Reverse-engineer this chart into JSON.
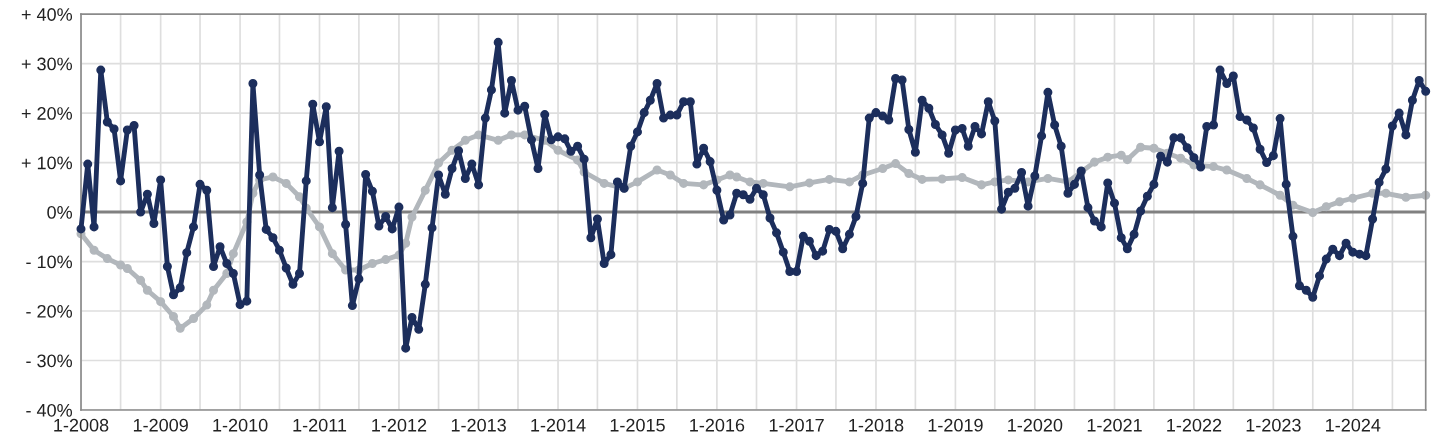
{
  "chart_data": {
    "type": "line",
    "series": [
      {
        "color": "#b2b7bc",
        "x": [
          "2008-01",
          "2008-03",
          "2008-05",
          "2008-07",
          "2008-08",
          "2008-10",
          "2008-11",
          "2009-01",
          "2009-03",
          "2009-04",
          "2009-06",
          "2009-08",
          "2009-09",
          "2009-11",
          "2009-12",
          "2010-02",
          "2010-03",
          "2010-04",
          "2010-06",
          "2010-08",
          "2010-10",
          "2010-11",
          "2011-01",
          "2011-03",
          "2011-05",
          "2011-07",
          "2011-09",
          "2011-11",
          "2012-01",
          "2012-02",
          "2012-03",
          "2012-05",
          "2012-07",
          "2012-09",
          "2012-11",
          "2013-01",
          "2013-04",
          "2013-06",
          "2013-08",
          "2013-11",
          "2014-01",
          "2014-04",
          "2014-05",
          "2014-08",
          "2014-11",
          "2015-01",
          "2015-04",
          "2015-06",
          "2015-08",
          "2015-11",
          "2016-01",
          "2016-03",
          "2016-04",
          "2016-06",
          "2016-08",
          "2016-12",
          "2017-03",
          "2017-06",
          "2017-09",
          "2017-11",
          "2018-02",
          "2018-04",
          "2018-06",
          "2018-08",
          "2018-11",
          "2019-02",
          "2019-05",
          "2019-07",
          "2019-09",
          "2019-12",
          "2020-03",
          "2020-06",
          "2020-08",
          "2020-10",
          "2020-12",
          "2021-02",
          "2021-03",
          "2021-05",
          "2021-07",
          "2021-09",
          "2021-11",
          "2022-01",
          "2022-04",
          "2022-06",
          "2022-09",
          "2022-11",
          "2023-02",
          "2023-04",
          "2023-07",
          "2023-09",
          "2023-11",
          "2024-01",
          "2024-04",
          "2024-06",
          "2024-09",
          "2024-12"
        ],
        "values": [
          -4.4,
          -7.7,
          -9.4,
          -10.7,
          -11.4,
          -13.8,
          -15.8,
          -18.1,
          -21.1,
          -23.5,
          -21.5,
          -18.8,
          -15.8,
          -12.4,
          -8.4,
          -2.0,
          3.8,
          6.5,
          7.1,
          5.8,
          3.1,
          0.8,
          -3.0,
          -8.4,
          -11.7,
          -11.7,
          -10.4,
          -9.6,
          -8.7,
          -6.3,
          -1.0,
          4.4,
          9.9,
          12.5,
          14.5,
          15.6,
          14.5,
          15.6,
          15.6,
          14.5,
          12.5,
          10.5,
          8.1,
          5.8,
          4.8,
          6.1,
          8.5,
          7.5,
          5.8,
          5.5,
          6.5,
          7.5,
          7.1,
          6.1,
          5.8,
          5.1,
          5.9,
          6.6,
          6.1,
          7.5,
          8.8,
          9.8,
          7.8,
          6.6,
          6.7,
          7.0,
          5.5,
          6.1,
          6.5,
          6.1,
          6.8,
          6.1,
          8.1,
          10.1,
          11.1,
          11.5,
          10.6,
          13.1,
          12.9,
          11.9,
          10.9,
          9.5,
          9.2,
          8.5,
          6.8,
          5.5,
          3.4,
          1.4,
          -0.1,
          1.1,
          2.1,
          2.8,
          3.8,
          3.8,
          3.0,
          3.4
        ]
      },
      {
        "color": "#1c2e5c",
        "x": [
          "2008-01",
          "2008-02",
          "2008-03",
          "2008-04",
          "2008-05",
          "2008-06",
          "2008-07",
          "2008-08",
          "2008-09",
          "2008-10",
          "2008-11",
          "2008-12",
          "2009-01",
          "2009-02",
          "2009-03",
          "2009-04",
          "2009-05",
          "2009-06",
          "2009-07",
          "2009-08",
          "2009-09",
          "2009-10",
          "2009-11",
          "2009-12",
          "2010-01",
          "2010-02",
          "2010-03",
          "2010-04",
          "2010-05",
          "2010-06",
          "2010-07",
          "2010-08",
          "2010-09",
          "2010-10",
          "2010-11",
          "2010-12",
          "2011-01",
          "2011-02",
          "2011-03",
          "2011-04",
          "2011-05",
          "2011-06",
          "2011-07",
          "2011-08",
          "2011-09",
          "2011-10",
          "2011-11",
          "2011-12",
          "2012-01",
          "2012-02",
          "2012-03",
          "2012-04",
          "2012-05",
          "2012-06",
          "2012-07",
          "2012-08",
          "2012-09",
          "2012-10",
          "2012-11",
          "2012-12",
          "2013-01",
          "2013-02",
          "2013-03",
          "2013-04",
          "2013-05",
          "2013-06",
          "2013-07",
          "2013-08",
          "2013-09",
          "2013-10",
          "2013-11",
          "2013-12",
          "2014-01",
          "2014-02",
          "2014-03",
          "2014-04",
          "2014-05",
          "2014-06",
          "2014-07",
          "2014-08",
          "2014-09",
          "2014-10",
          "2014-11",
          "2014-12",
          "2015-01",
          "2015-02",
          "2015-03",
          "2015-04",
          "2015-05",
          "2015-06",
          "2015-07",
          "2015-08",
          "2015-09",
          "2015-10",
          "2015-11",
          "2015-12",
          "2016-01",
          "2016-02",
          "2016-03",
          "2016-04",
          "2016-05",
          "2016-06",
          "2016-07",
          "2016-08",
          "2016-09",
          "2016-10",
          "2016-11",
          "2016-12",
          "2017-01",
          "2017-02",
          "2017-03",
          "2017-04",
          "2017-05",
          "2017-06",
          "2017-07",
          "2017-08",
          "2017-09",
          "2017-10",
          "2017-11",
          "2017-12",
          "2018-01",
          "2018-02",
          "2018-03",
          "2018-04",
          "2018-05",
          "2018-06",
          "2018-07",
          "2018-08",
          "2018-09",
          "2018-10",
          "2018-11",
          "2018-12",
          "2019-01",
          "2019-02",
          "2019-03",
          "2019-04",
          "2019-05",
          "2019-06",
          "2019-07",
          "2019-08",
          "2019-09",
          "2019-10",
          "2019-11",
          "2019-12",
          "2020-01",
          "2020-02",
          "2020-03",
          "2020-04",
          "2020-05",
          "2020-06",
          "2020-07",
          "2020-08",
          "2020-09",
          "2020-10",
          "2020-11",
          "2020-12",
          "2021-01",
          "2021-02",
          "2021-03",
          "2021-04",
          "2021-05",
          "2021-06",
          "2021-07",
          "2021-08",
          "2021-09",
          "2021-10",
          "2021-11",
          "2021-12",
          "2022-01",
          "2022-02",
          "2022-03",
          "2022-04",
          "2022-05",
          "2022-06",
          "2022-07",
          "2022-08",
          "2022-09",
          "2022-10",
          "2022-11",
          "2022-12",
          "2023-01",
          "2023-02",
          "2023-03",
          "2023-04",
          "2023-05",
          "2023-06",
          "2023-07",
          "2023-08",
          "2023-09",
          "2023-10",
          "2023-11",
          "2023-12",
          "2024-01",
          "2024-02",
          "2024-03",
          "2024-04",
          "2024-05",
          "2024-06",
          "2024-07",
          "2024-08",
          "2024-09",
          "2024-10",
          "2024-11",
          "2024-12"
        ],
        "values": [
          -3.4,
          9.7,
          -3.0,
          28.7,
          18.2,
          16.8,
          6.3,
          16.6,
          17.5,
          0.0,
          3.6,
          -2.3,
          6.5,
          -11.0,
          -16.7,
          -15.3,
          -8.2,
          -3.0,
          5.6,
          4.4,
          -11.0,
          -7.0,
          -10.4,
          -12.4,
          -18.7,
          -18.0,
          26.0,
          7.5,
          -3.5,
          -5.2,
          -7.7,
          -11.3,
          -14.6,
          -12.4,
          6.3,
          21.8,
          14.2,
          21.3,
          0.9,
          12.3,
          -2.5,
          -18.9,
          -13.5,
          7.6,
          4.2,
          -2.8,
          -0.9,
          -3.4,
          1.0,
          -27.5,
          -21.3,
          -23.7,
          -14.6,
          -3.2,
          7.5,
          3.6,
          8.8,
          12.4,
          6.8,
          9.7,
          5.5,
          19.0,
          24.7,
          34.3,
          20.0,
          26.6,
          20.6,
          21.4,
          14.6,
          8.8,
          19.7,
          14.6,
          15.2,
          14.8,
          12.3,
          13.3,
          10.7,
          -5.2,
          -1.4,
          -10.4,
          -8.6,
          6.1,
          4.8,
          13.3,
          16.2,
          20.1,
          22.6,
          26.0,
          19.0,
          19.6,
          19.6,
          22.3,
          22.3,
          9.7,
          12.9,
          10.2,
          4.4,
          -1.6,
          -0.6,
          3.8,
          3.5,
          2.6,
          4.8,
          3.5,
          -1.2,
          -4.2,
          -8.1,
          -12.0,
          -12.0,
          -4.9,
          -5.9,
          -8.8,
          -7.9,
          -3.5,
          -3.9,
          -7.4,
          -4.5,
          -0.9,
          5.8,
          19.0,
          20.1,
          19.4,
          18.6,
          27.0,
          26.7,
          16.7,
          12.1,
          22.6,
          21.0,
          17.7,
          15.6,
          11.9,
          16.6,
          16.9,
          13.3,
          17.3,
          15.8,
          22.3,
          18.4,
          0.6,
          4.0,
          4.8,
          8.0,
          1.2,
          7.3,
          15.4,
          24.2,
          17.6,
          13.3,
          3.8,
          5.6,
          8.3,
          0.9,
          -1.8,
          -3.0,
          5.9,
          1.8,
          -5.2,
          -7.4,
          -4.5,
          0.2,
          3.2,
          5.6,
          11.3,
          10.1,
          15.0,
          15.0,
          13.0,
          11.0,
          9.1,
          17.3,
          17.6,
          28.7,
          26.0,
          27.5,
          19.3,
          18.6,
          17.0,
          12.7,
          10.0,
          11.4,
          18.9,
          5.6,
          -4.9,
          -14.9,
          -15.8,
          -17.2,
          -12.9,
          -9.5,
          -7.5,
          -8.8,
          -6.3,
          -8.1,
          -8.5,
          -8.8,
          -1.4,
          6.0,
          8.7,
          17.4,
          20.0,
          15.6,
          22.6,
          26.6,
          24.4
        ]
      }
    ],
    "xlim": [
      "2008-01",
      "2024-12"
    ],
    "xticks": [
      {
        "value": "2008-01",
        "label": "1-2008"
      },
      {
        "value": "2008-07",
        "label": null
      },
      {
        "value": "2009-01",
        "label": "1-2009"
      },
      {
        "value": "2009-07",
        "label": null
      },
      {
        "value": "2010-01",
        "label": "1-2010"
      },
      {
        "value": "2010-07",
        "label": null
      },
      {
        "value": "2011-01",
        "label": "1-2011"
      },
      {
        "value": "2011-07",
        "label": null
      },
      {
        "value": "2012-01",
        "label": "1-2012"
      },
      {
        "value": "2012-07",
        "label": null
      },
      {
        "value": "2013-01",
        "label": "1-2013"
      },
      {
        "value": "2013-07",
        "label": null
      },
      {
        "value": "2014-01",
        "label": "1-2014"
      },
      {
        "value": "2014-07",
        "label": null
      },
      {
        "value": "2015-01",
        "label": "1-2015"
      },
      {
        "value": "2015-07",
        "label": null
      },
      {
        "value": "2016-01",
        "label": "1-2016"
      },
      {
        "value": "2016-07",
        "label": null
      },
      {
        "value": "2017-01",
        "label": "1-2017"
      },
      {
        "value": "2017-07",
        "label": null
      },
      {
        "value": "2018-01",
        "label": "1-2018"
      },
      {
        "value": "2018-07",
        "label": null
      },
      {
        "value": "2019-01",
        "label": "1-2019"
      },
      {
        "value": "2019-07",
        "label": null
      },
      {
        "value": "2020-01",
        "label": "1-2020"
      },
      {
        "value": "2020-07",
        "label": null
      },
      {
        "value": "2021-01",
        "label": "1-2021"
      },
      {
        "value": "2021-07",
        "label": null
      },
      {
        "value": "2022-01",
        "label": "1-2022"
      },
      {
        "value": "2022-07",
        "label": null
      },
      {
        "value": "2023-01",
        "label": "1-2023"
      },
      {
        "value": "2023-07",
        "label": null
      },
      {
        "value": "2024-01",
        "label": "1-2024"
      },
      {
        "value": "2024-07",
        "label": null
      }
    ],
    "ylim": [
      -40,
      40
    ],
    "yticks": [
      {
        "value": -40,
        "label": "- 40%"
      },
      {
        "value": -30,
        "label": "- 30%"
      },
      {
        "value": -20,
        "label": "- 20%"
      },
      {
        "value": -10,
        "label": "- 10%"
      },
      {
        "value": 0,
        "label": "0%"
      },
      {
        "value": 10,
        "label": "+ 10%"
      },
      {
        "value": 20,
        "label": "+ 20%"
      },
      {
        "value": 30,
        "label": "+ 30%"
      },
      {
        "value": 40,
        "label": "+ 40%"
      }
    ],
    "ref_lines": [
      {
        "axis": "y",
        "value": 0,
        "color": "#808080"
      }
    ],
    "grid": true,
    "marker": "circle",
    "line_style": "solid",
    "legend": false
  }
}
